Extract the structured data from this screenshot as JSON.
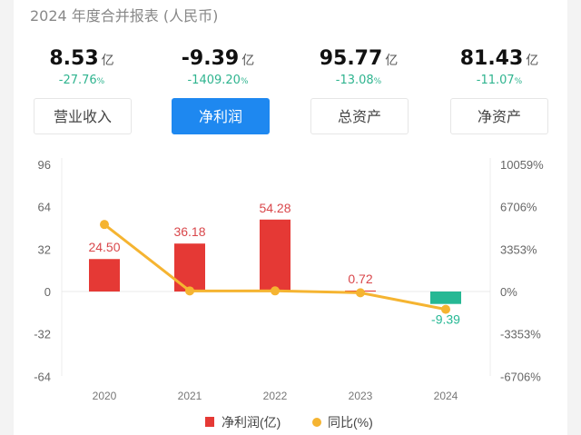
{
  "header": {
    "title": "2024 年度合并报表 (人民币)"
  },
  "metrics": [
    {
      "value": "8.53",
      "unit": "亿",
      "change": "-27.76",
      "pct": "%"
    },
    {
      "value": "-9.39",
      "unit": "亿",
      "change": "-1409.20",
      "pct": "%"
    },
    {
      "value": "95.77",
      "unit": "亿",
      "change": "-13.08",
      "pct": "%"
    },
    {
      "value": "81.43",
      "unit": "亿",
      "change": "-11.07",
      "pct": "%"
    }
  ],
  "tabs": [
    {
      "label": "营业收入",
      "active": false
    },
    {
      "label": "净利润",
      "active": true
    },
    {
      "label": "总资产",
      "active": false
    },
    {
      "label": "净资产",
      "active": false
    }
  ],
  "colors": {
    "positive": "#e53935",
    "negative": "#26b894",
    "line": "#f5b431",
    "accent": "#1e88f0"
  },
  "chart_data": {
    "type": "bar+line",
    "categories": [
      "2020",
      "2021",
      "2022",
      "2023",
      "2024"
    ],
    "series": [
      {
        "name": "净利润(亿)",
        "type": "bar",
        "axis": "left",
        "values": [
          24.5,
          36.18,
          54.28,
          0.72,
          -9.39
        ],
        "labels": [
          "24.50",
          "36.18",
          "54.28",
          "0.72",
          "-9.39"
        ]
      },
      {
        "name": "同比(%)",
        "type": "line",
        "axis": "right",
        "values": [
          5300,
          47.7,
          50.0,
          -98.7,
          -1409.2
        ]
      }
    ],
    "left_axis": {
      "ticks": [
        "96",
        "64",
        "32",
        "0",
        "-32",
        "-64"
      ],
      "range": [
        -64,
        96
      ]
    },
    "right_axis": {
      "ticks": [
        "10059%",
        "6706%",
        "3353%",
        "0%",
        "-3353%",
        "-6706%"
      ],
      "range": [
        -6706,
        10059
      ]
    },
    "legend": {
      "placement": "bottom",
      "items": [
        "净利润(亿)",
        "同比(%)"
      ]
    }
  }
}
